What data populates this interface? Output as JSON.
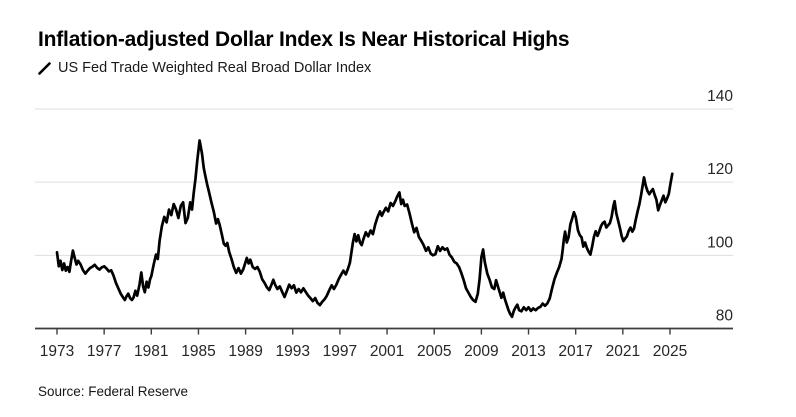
{
  "header": {
    "title": "Inflation-adjusted Dollar Index Is Near Historical Highs",
    "legend_label": "US Fed Trade Weighted Real Broad Dollar Index"
  },
  "footer": {
    "source": "Source: Federal Reserve"
  },
  "colors": {
    "background": "#ffffff",
    "line": "#000000",
    "grid": "#dedede",
    "axis": "#3d3d3d",
    "tick_label": "#262626",
    "title_text": "#000000"
  },
  "chart_data": {
    "type": "line",
    "title": "Inflation-adjusted Dollar Index Is Near Historical Highs",
    "xlabel": "",
    "ylabel": "",
    "grid": true,
    "legend_position": "top-left",
    "x_ticks": [
      1973,
      1977,
      1981,
      1985,
      1989,
      1993,
      1997,
      2001,
      2005,
      2009,
      2013,
      2017,
      2021,
      2025
    ],
    "y_ticks": [
      80,
      100,
      120,
      140
    ],
    "xlim": [
      1971.1,
      2030.3
    ],
    "ylim": [
      80,
      140
    ],
    "series": [
      {
        "name": "US Fed Trade Weighted Real Broad Dollar Index",
        "points": [
          [
            1973.0,
            100.8
          ],
          [
            1973.15,
            97.0
          ],
          [
            1973.3,
            98.5
          ],
          [
            1973.45,
            96.0
          ],
          [
            1973.6,
            97.8
          ],
          [
            1973.75,
            95.8
          ],
          [
            1973.9,
            96.8
          ],
          [
            1974.05,
            95.5
          ],
          [
            1974.2,
            98.5
          ],
          [
            1974.35,
            101.3
          ],
          [
            1974.5,
            99.3
          ],
          [
            1974.65,
            97.5
          ],
          [
            1974.8,
            98.5
          ],
          [
            1975.0,
            97.5
          ],
          [
            1975.2,
            96.0
          ],
          [
            1975.4,
            95.0
          ],
          [
            1975.6,
            95.8
          ],
          [
            1975.8,
            96.5
          ],
          [
            1976.0,
            96.9
          ],
          [
            1976.2,
            97.4
          ],
          [
            1976.4,
            96.6
          ],
          [
            1976.6,
            96.1
          ],
          [
            1976.8,
            96.7
          ],
          [
            1977.0,
            97.0
          ],
          [
            1977.2,
            96.4
          ],
          [
            1977.4,
            95.6
          ],
          [
            1977.6,
            95.9
          ],
          [
            1977.8,
            94.4
          ],
          [
            1978.0,
            92.5
          ],
          [
            1978.2,
            91.0
          ],
          [
            1978.4,
            89.5
          ],
          [
            1978.6,
            88.5
          ],
          [
            1978.75,
            87.8
          ],
          [
            1978.9,
            88.8
          ],
          [
            1979.05,
            89.5
          ],
          [
            1979.2,
            88.3
          ],
          [
            1979.35,
            87.8
          ],
          [
            1979.5,
            88.5
          ],
          [
            1979.65,
            90.3
          ],
          [
            1979.8,
            89.0
          ],
          [
            1980.0,
            92.0
          ],
          [
            1980.15,
            95.3
          ],
          [
            1980.3,
            91.5
          ],
          [
            1980.45,
            89.9
          ],
          [
            1980.6,
            92.8
          ],
          [
            1980.75,
            91.2
          ],
          [
            1980.9,
            93.5
          ],
          [
            1981.0,
            94.3
          ],
          [
            1981.2,
            97.5
          ],
          [
            1981.4,
            100.2
          ],
          [
            1981.55,
            99.0
          ],
          [
            1981.7,
            104.0
          ],
          [
            1981.9,
            108.0
          ],
          [
            1982.1,
            110.5
          ],
          [
            1982.3,
            109.0
          ],
          [
            1982.5,
            112.5
          ],
          [
            1982.7,
            111.0
          ],
          [
            1982.9,
            114.0
          ],
          [
            1983.1,
            112.5
          ],
          [
            1983.3,
            110.2
          ],
          [
            1983.5,
            113.5
          ],
          [
            1983.7,
            114.5
          ],
          [
            1983.9,
            108.8
          ],
          [
            1984.1,
            110.2
          ],
          [
            1984.3,
            114.5
          ],
          [
            1984.45,
            112.5
          ],
          [
            1984.6,
            117.0
          ],
          [
            1984.75,
            121.0
          ],
          [
            1984.9,
            126.0
          ],
          [
            1985.1,
            131.4
          ],
          [
            1985.3,
            127.8
          ],
          [
            1985.45,
            123.8
          ],
          [
            1985.6,
            121.5
          ],
          [
            1985.75,
            119.2
          ],
          [
            1985.9,
            117.2
          ],
          [
            1986.1,
            114.5
          ],
          [
            1986.3,
            111.9
          ],
          [
            1986.5,
            108.7
          ],
          [
            1986.65,
            109.9
          ],
          [
            1986.8,
            108.3
          ],
          [
            1987.0,
            105.5
          ],
          [
            1987.15,
            103.2
          ],
          [
            1987.3,
            102.6
          ],
          [
            1987.45,
            103.4
          ],
          [
            1987.6,
            101.0
          ],
          [
            1987.8,
            99.0
          ],
          [
            1988.0,
            96.8
          ],
          [
            1988.2,
            95.2
          ],
          [
            1988.4,
            96.5
          ],
          [
            1988.6,
            95.0
          ],
          [
            1988.8,
            96.2
          ],
          [
            1989.0,
            98.2
          ],
          [
            1989.1,
            99.3
          ],
          [
            1989.25,
            97.8
          ],
          [
            1989.4,
            98.8
          ],
          [
            1989.6,
            96.8
          ],
          [
            1989.8,
            96.3
          ],
          [
            1990.0,
            96.8
          ],
          [
            1990.2,
            95.5
          ],
          [
            1990.4,
            93.5
          ],
          [
            1990.6,
            92.5
          ],
          [
            1990.8,
            91.3
          ],
          [
            1991.0,
            90.5
          ],
          [
            1991.2,
            92.0
          ],
          [
            1991.35,
            93.3
          ],
          [
            1991.5,
            92.0
          ],
          [
            1991.7,
            90.8
          ],
          [
            1991.9,
            91.5
          ],
          [
            1992.1,
            90.0
          ],
          [
            1992.3,
            88.6
          ],
          [
            1992.5,
            90.3
          ],
          [
            1992.7,
            92.0
          ],
          [
            1992.9,
            91.0
          ],
          [
            1993.1,
            91.8
          ],
          [
            1993.3,
            89.8
          ],
          [
            1993.5,
            90.8
          ],
          [
            1993.7,
            89.9
          ],
          [
            1993.9,
            91.0
          ],
          [
            1994.1,
            90.0
          ],
          [
            1994.3,
            89.0
          ],
          [
            1994.5,
            88.3
          ],
          [
            1994.7,
            87.5
          ],
          [
            1994.9,
            88.3
          ],
          [
            1995.1,
            87.0
          ],
          [
            1995.3,
            86.4
          ],
          [
            1995.5,
            87.3
          ],
          [
            1995.7,
            88.0
          ],
          [
            1995.9,
            89.0
          ],
          [
            1996.1,
            90.5
          ],
          [
            1996.3,
            91.8
          ],
          [
            1996.5,
            90.8
          ],
          [
            1996.7,
            92.0
          ],
          [
            1996.9,
            93.5
          ],
          [
            1997.1,
            94.7
          ],
          [
            1997.3,
            95.8
          ],
          [
            1997.5,
            94.8
          ],
          [
            1997.7,
            96.5
          ],
          [
            1997.85,
            98.0
          ],
          [
            1998.1,
            103.5
          ],
          [
            1998.25,
            105.8
          ],
          [
            1998.4,
            103.8
          ],
          [
            1998.55,
            105.5
          ],
          [
            1998.7,
            103.5
          ],
          [
            1998.85,
            102.8
          ],
          [
            1999.0,
            104.5
          ],
          [
            1999.2,
            106.3
          ],
          [
            1999.4,
            105.2
          ],
          [
            1999.6,
            106.8
          ],
          [
            1999.8,
            105.8
          ],
          [
            2000.0,
            108.5
          ],
          [
            2000.2,
            110.5
          ],
          [
            2000.4,
            112.0
          ],
          [
            2000.55,
            110.8
          ],
          [
            2000.7,
            111.8
          ],
          [
            2000.9,
            113.0
          ],
          [
            2001.1,
            112.0
          ],
          [
            2001.3,
            114.3
          ],
          [
            2001.5,
            113.5
          ],
          [
            2001.7,
            114.8
          ],
          [
            2001.85,
            116.0
          ],
          [
            2002.05,
            117.2
          ],
          [
            2002.2,
            114.0
          ],
          [
            2002.35,
            115.2
          ],
          [
            2002.5,
            113.5
          ],
          [
            2002.7,
            113.9
          ],
          [
            2002.9,
            111.5
          ],
          [
            2003.1,
            108.8
          ],
          [
            2003.3,
            106.3
          ],
          [
            2003.5,
            107.5
          ],
          [
            2003.7,
            105.0
          ],
          [
            2003.9,
            104.0
          ],
          [
            2004.1,
            102.8
          ],
          [
            2004.3,
            101.2
          ],
          [
            2004.5,
            102.2
          ],
          [
            2004.7,
            100.5
          ],
          [
            2004.9,
            100.0
          ],
          [
            2005.1,
            100.3
          ],
          [
            2005.3,
            102.5
          ],
          [
            2005.5,
            101.2
          ],
          [
            2005.7,
            102.2
          ],
          [
            2005.9,
            101.5
          ],
          [
            2006.1,
            101.9
          ],
          [
            2006.3,
            100.2
          ],
          [
            2006.5,
            99.4
          ],
          [
            2006.7,
            98.2
          ],
          [
            2006.9,
            97.8
          ],
          [
            2007.1,
            96.8
          ],
          [
            2007.3,
            95.2
          ],
          [
            2007.5,
            93.2
          ],
          [
            2007.7,
            91.0
          ],
          [
            2007.9,
            89.8
          ],
          [
            2008.1,
            88.6
          ],
          [
            2008.3,
            87.8
          ],
          [
            2008.5,
            87.3
          ],
          [
            2008.7,
            89.5
          ],
          [
            2008.85,
            93.5
          ],
          [
            2009.0,
            99.5
          ],
          [
            2009.15,
            101.6
          ],
          [
            2009.3,
            98.0
          ],
          [
            2009.5,
            95.0
          ],
          [
            2009.7,
            93.3
          ],
          [
            2009.9,
            91.2
          ],
          [
            2010.1,
            90.8
          ],
          [
            2010.25,
            93.2
          ],
          [
            2010.4,
            91.5
          ],
          [
            2010.55,
            90.0
          ],
          [
            2010.7,
            88.4
          ],
          [
            2010.85,
            89.8
          ],
          [
            2011.0,
            88.0
          ],
          [
            2011.15,
            86.5
          ],
          [
            2011.3,
            85.0
          ],
          [
            2011.45,
            84.0
          ],
          [
            2011.6,
            83.2
          ],
          [
            2011.75,
            84.8
          ],
          [
            2011.9,
            85.8
          ],
          [
            2012.05,
            86.5
          ],
          [
            2012.2,
            85.0
          ],
          [
            2012.4,
            84.7
          ],
          [
            2012.6,
            85.8
          ],
          [
            2012.8,
            85.0
          ],
          [
            2013.0,
            85.8
          ],
          [
            2013.2,
            84.8
          ],
          [
            2013.4,
            85.5
          ],
          [
            2013.6,
            85.0
          ],
          [
            2013.8,
            85.6
          ],
          [
            2014.0,
            85.9
          ],
          [
            2014.2,
            86.8
          ],
          [
            2014.4,
            86.2
          ],
          [
            2014.6,
            86.9
          ],
          [
            2014.8,
            88.2
          ],
          [
            2015.0,
            91.0
          ],
          [
            2015.2,
            93.5
          ],
          [
            2015.4,
            95.2
          ],
          [
            2015.6,
            96.8
          ],
          [
            2015.8,
            99.0
          ],
          [
            2015.9,
            101.5
          ],
          [
            2016.0,
            104.5
          ],
          [
            2016.1,
            106.5
          ],
          [
            2016.25,
            103.5
          ],
          [
            2016.4,
            105.0
          ],
          [
            2016.55,
            108.5
          ],
          [
            2016.7,
            110.0
          ],
          [
            2016.85,
            111.8
          ],
          [
            2017.0,
            110.5
          ],
          [
            2017.2,
            106.8
          ],
          [
            2017.35,
            105.5
          ],
          [
            2017.5,
            104.9
          ],
          [
            2017.65,
            102.4
          ],
          [
            2017.8,
            103.5
          ],
          [
            2017.95,
            102.0
          ],
          [
            2018.1,
            101.0
          ],
          [
            2018.25,
            100.2
          ],
          [
            2018.4,
            102.5
          ],
          [
            2018.55,
            105.0
          ],
          [
            2018.7,
            106.6
          ],
          [
            2018.85,
            105.3
          ],
          [
            2019.0,
            106.5
          ],
          [
            2019.15,
            108.0
          ],
          [
            2019.3,
            108.8
          ],
          [
            2019.45,
            109.2
          ],
          [
            2019.6,
            107.6
          ],
          [
            2019.75,
            108.2
          ],
          [
            2019.9,
            108.8
          ],
          [
            2020.05,
            110.5
          ],
          [
            2020.2,
            113.5
          ],
          [
            2020.3,
            114.8
          ],
          [
            2020.45,
            111.5
          ],
          [
            2020.6,
            109.5
          ],
          [
            2020.75,
            107.5
          ],
          [
            2020.9,
            105.3
          ],
          [
            2021.05,
            103.9
          ],
          [
            2021.2,
            104.6
          ],
          [
            2021.35,
            105.2
          ],
          [
            2021.5,
            106.7
          ],
          [
            2021.65,
            107.6
          ],
          [
            2021.8,
            106.5
          ],
          [
            2021.95,
            107.3
          ],
          [
            2022.1,
            109.8
          ],
          [
            2022.25,
            112.0
          ],
          [
            2022.4,
            113.9
          ],
          [
            2022.55,
            116.5
          ],
          [
            2022.7,
            119.5
          ],
          [
            2022.8,
            121.3
          ],
          [
            2022.95,
            119.0
          ],
          [
            2023.1,
            117.5
          ],
          [
            2023.25,
            116.7
          ],
          [
            2023.4,
            117.5
          ],
          [
            2023.55,
            118.1
          ],
          [
            2023.7,
            116.5
          ],
          [
            2023.85,
            115.2
          ],
          [
            2024.0,
            112.3
          ],
          [
            2024.15,
            113.8
          ],
          [
            2024.3,
            115.0
          ],
          [
            2024.45,
            116.3
          ],
          [
            2024.6,
            114.5
          ],
          [
            2024.75,
            115.5
          ],
          [
            2024.9,
            116.8
          ],
          [
            2025.05,
            119.8
          ],
          [
            2025.2,
            122.3
          ]
        ]
      }
    ],
    "source": "Source: Federal Reserve"
  }
}
